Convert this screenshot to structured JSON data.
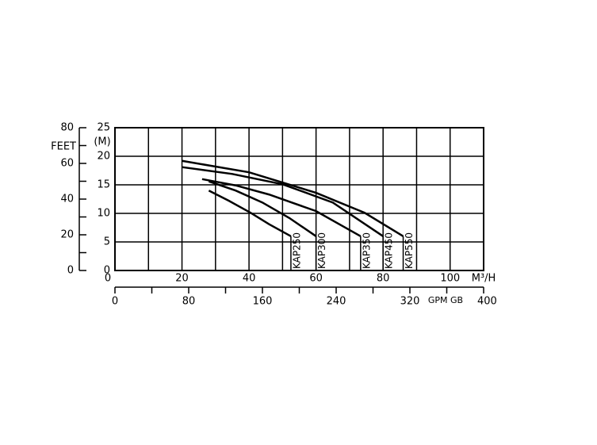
{
  "chart_data": {
    "type": "line",
    "x_label": "M³/H",
    "x2_label": "GPM GB",
    "y_label": "(M)",
    "y2_label": "FEET",
    "xlim": [
      0,
      110
    ],
    "xticks": [
      0,
      20,
      40,
      60,
      80,
      100
    ],
    "xminor_ticks": [
      10,
      30,
      50,
      70,
      90,
      110
    ],
    "x2lim": [
      0,
      400
    ],
    "x2ticks": [
      0,
      80,
      160,
      240,
      320,
      400
    ],
    "x2minor_ticks": [
      40,
      120,
      200,
      280,
      360
    ],
    "ylim": [
      0,
      25
    ],
    "yticks": [
      0,
      5,
      10,
      15,
      20,
      25
    ],
    "y2lim": [
      0,
      80
    ],
    "y2ticks": [
      0,
      20,
      40,
      60,
      80
    ],
    "y2minor_ticks": [
      10,
      30,
      50,
      70
    ],
    "grid": true,
    "color": "#000000",
    "series": [
      {
        "name": "KAP250",
        "x": [
          28,
          34,
          40.5,
          46,
          52.5
        ],
        "values": [
          14,
          12.2,
          10.1,
          8.1,
          6
        ]
      },
      {
        "name": "KAP300",
        "x": [
          28,
          36,
          44,
          52,
          60
        ],
        "values": [
          15.6,
          14,
          11.9,
          9.2,
          6
        ]
      },
      {
        "name": "KAP350",
        "x": [
          26,
          36,
          46,
          60,
          73.3
        ],
        "values": [
          16,
          14.9,
          13.3,
          10.4,
          6
        ]
      },
      {
        "name": "KAP450",
        "x": [
          20,
          35,
          50,
          65,
          80
        ],
        "values": [
          18.1,
          16.9,
          15.1,
          11.9,
          6
        ]
      },
      {
        "name": "KAP550",
        "x": [
          20,
          40,
          60,
          74.5,
          86
        ],
        "values": [
          19.2,
          17.2,
          13.6,
          10.1,
          6
        ]
      }
    ]
  }
}
